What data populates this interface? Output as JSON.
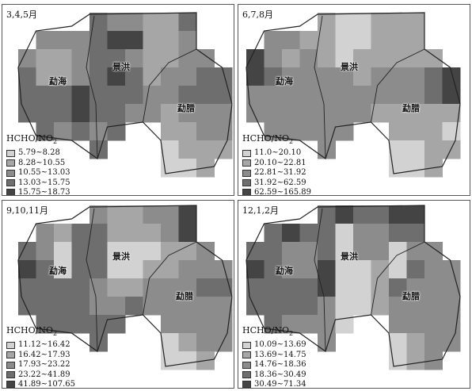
{
  "legend_title": "HCHO/NO",
  "legend_subscript": "2",
  "place_names": {
    "mengHai": "勐海",
    "jingHong": "景洪",
    "mengLa_a": "勐腊",
    "mengLa_b": "勐腊"
  },
  "palette": [
    "#d2d2d2",
    "#a6a6a6",
    "#8c8c8c",
    "#6e6e6e",
    "#444444"
  ],
  "panels": [
    {
      "season": "3,4,5月",
      "place_labels": [
        "勐海",
        "景洪",
        "勐腊"
      ],
      "classes": [
        "5.79~8.28",
        "8.28~10.55",
        "10.55~13.03",
        "13.03~15.75",
        "15.75~18.73"
      ],
      "grid": [
        [
          null,
          null,
          null,
          null,
          3,
          2,
          2,
          1,
          1,
          3,
          null,
          null
        ],
        [
          null,
          2,
          2,
          2,
          3,
          4,
          4,
          1,
          1,
          2,
          null,
          null
        ],
        [
          2,
          1,
          1,
          2,
          3,
          3,
          2,
          1,
          1,
          2,
          2,
          null
        ],
        [
          3,
          1,
          1,
          2,
          3,
          4,
          3,
          1,
          2,
          2,
          3,
          3
        ],
        [
          3,
          3,
          3,
          4,
          3,
          3,
          3,
          2,
          2,
          3,
          3,
          3
        ],
        [
          3,
          3,
          3,
          4,
          3,
          3,
          2,
          2,
          1,
          2,
          2,
          2
        ],
        [
          null,
          3,
          2,
          3,
          2,
          3,
          null,
          null,
          1,
          1,
          2,
          2
        ],
        [
          null,
          null,
          null,
          null,
          3,
          null,
          null,
          null,
          0,
          1,
          1,
          1
        ],
        [
          null,
          null,
          null,
          null,
          null,
          null,
          null,
          null,
          0,
          0,
          1,
          null
        ]
      ]
    },
    {
      "season": "6,7,8月",
      "place_labels": [
        "勐海",
        "景洪",
        "勐腊"
      ],
      "classes": [
        "11.0~20.10",
        "20.10~22.81",
        "22.81~31.92",
        "31.92~62.59",
        "62.59~165.89"
      ],
      "grid": [
        [
          null,
          null,
          null,
          null,
          1,
          0,
          0,
          1,
          1,
          1,
          null,
          null
        ],
        [
          null,
          2,
          2,
          1,
          1,
          0,
          0,
          1,
          1,
          1,
          null,
          null
        ],
        [
          4,
          2,
          1,
          2,
          1,
          0,
          1,
          1,
          1,
          1,
          1,
          null
        ],
        [
          4,
          3,
          2,
          2,
          2,
          2,
          1,
          2,
          2,
          2,
          3,
          4
        ],
        [
          2,
          2,
          2,
          2,
          2,
          2,
          2,
          2,
          2,
          2,
          3,
          4
        ],
        [
          2,
          2,
          2,
          2,
          2,
          2,
          2,
          1,
          1,
          1,
          1,
          1
        ],
        [
          null,
          2,
          2,
          2,
          2,
          2,
          null,
          null,
          1,
          1,
          1,
          0
        ],
        [
          null,
          null,
          null,
          null,
          2,
          null,
          null,
          null,
          0,
          0,
          1,
          1
        ],
        [
          null,
          null,
          null,
          null,
          null,
          null,
          null,
          null,
          0,
          0,
          1,
          null
        ]
      ]
    },
    {
      "season": "9,10,11月",
      "place_labels": [
        "勐海",
        "景洪",
        "勐腊"
      ],
      "classes": [
        "11.12~16.42",
        "16.42~17.93",
        "17.93~23.22",
        "23.22~41.89",
        "41.89~107.65"
      ],
      "grid": [
        [
          null,
          null,
          null,
          null,
          2,
          1,
          1,
          2,
          2,
          4,
          null,
          null
        ],
        [
          null,
          2,
          1,
          3,
          3,
          1,
          1,
          1,
          2,
          4,
          null,
          null
        ],
        [
          3,
          2,
          0,
          3,
          3,
          0,
          0,
          0,
          1,
          1,
          2,
          null
        ],
        [
          4,
          3,
          0,
          3,
          3,
          0,
          0,
          1,
          1,
          2,
          2,
          2
        ],
        [
          3,
          3,
          3,
          3,
          2,
          1,
          1,
          2,
          2,
          2,
          3,
          3
        ],
        [
          3,
          3,
          3,
          3,
          2,
          2,
          3,
          2,
          2,
          2,
          2,
          2
        ],
        [
          null,
          3,
          3,
          3,
          3,
          3,
          null,
          null,
          2,
          2,
          2,
          2
        ],
        [
          null,
          null,
          null,
          null,
          3,
          null,
          null,
          null,
          0,
          1,
          2,
          2
        ],
        [
          null,
          null,
          null,
          null,
          null,
          null,
          null,
          null,
          0,
          0,
          1,
          null
        ]
      ]
    },
    {
      "season": "12,1,2月",
      "place_labels": [
        "勐海",
        "景洪",
        "勐腊"
      ],
      "classes": [
        "10.09~13.69",
        "13.69~14.75",
        "14.76~18.36",
        "18.36~30.49",
        "30.49~71.34"
      ],
      "grid": [
        [
          null,
          null,
          null,
          null,
          3,
          4,
          3,
          3,
          4,
          4,
          null,
          null
        ],
        [
          null,
          3,
          4,
          3,
          3,
          0,
          2,
          2,
          3,
          3,
          null,
          null
        ],
        [
          3,
          3,
          2,
          2,
          3,
          0,
          2,
          2,
          0,
          2,
          2,
          null
        ],
        [
          4,
          3,
          2,
          2,
          4,
          0,
          0,
          1,
          0,
          3,
          2,
          2
        ],
        [
          3,
          3,
          3,
          3,
          4,
          0,
          0,
          1,
          3,
          2,
          2,
          2
        ],
        [
          3,
          3,
          3,
          3,
          2,
          0,
          0,
          1,
          2,
          2,
          2,
          2
        ],
        [
          null,
          3,
          2,
          2,
          2,
          0,
          null,
          null,
          2,
          2,
          2,
          2
        ],
        [
          null,
          null,
          null,
          null,
          2,
          null,
          null,
          null,
          0,
          1,
          2,
          2
        ],
        [
          null,
          null,
          null,
          null,
          null,
          null,
          null,
          null,
          0,
          1,
          2,
          null
        ]
      ]
    }
  ]
}
